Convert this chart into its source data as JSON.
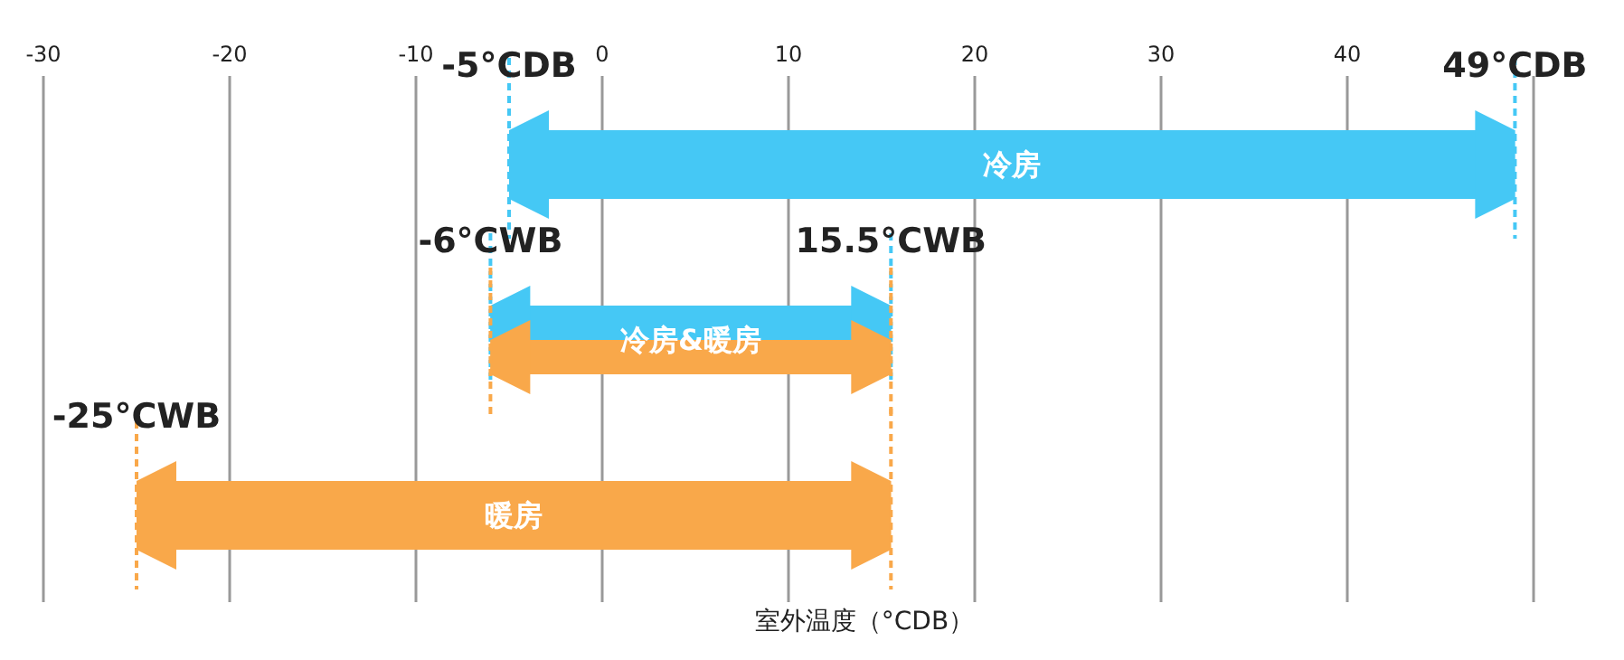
{
  "chart_data": {
    "type": "bar",
    "orientation": "horizontal",
    "xlabel": "室外温度（°CDB）",
    "categories": [
      "冷房",
      "冷房&暖房",
      "暖房"
    ],
    "series": [
      {
        "color": "#45c8f5",
        "values": [
          54,
          21.5,
          null
        ],
        "base": [
          -5,
          -6,
          null
        ]
      },
      {
        "color": "#f9a84a",
        "values": [
          null,
          21.5,
          40.5
        ],
        "base": [
          null,
          -6,
          -25
        ]
      }
    ],
    "xlim": [
      -30,
      50
    ],
    "xticks": [
      -30,
      -20,
      -10,
      0,
      10,
      20,
      30,
      40
    ],
    "grid": "x",
    "annotations": [
      {
        "text": "-5°CDB",
        "x": -5,
        "y": "冷房"
      },
      {
        "text": "49°CDB",
        "x": 49,
        "y": "冷房"
      },
      {
        "text": "-6°CWB",
        "x": -6,
        "y": "冷房&暖房"
      },
      {
        "text": "15.5°CWB",
        "x": 15.5,
        "y": "冷房&暖房"
      },
      {
        "text": "-25°CWB",
        "x": -25,
        "y": "暖房"
      }
    ]
  }
}
